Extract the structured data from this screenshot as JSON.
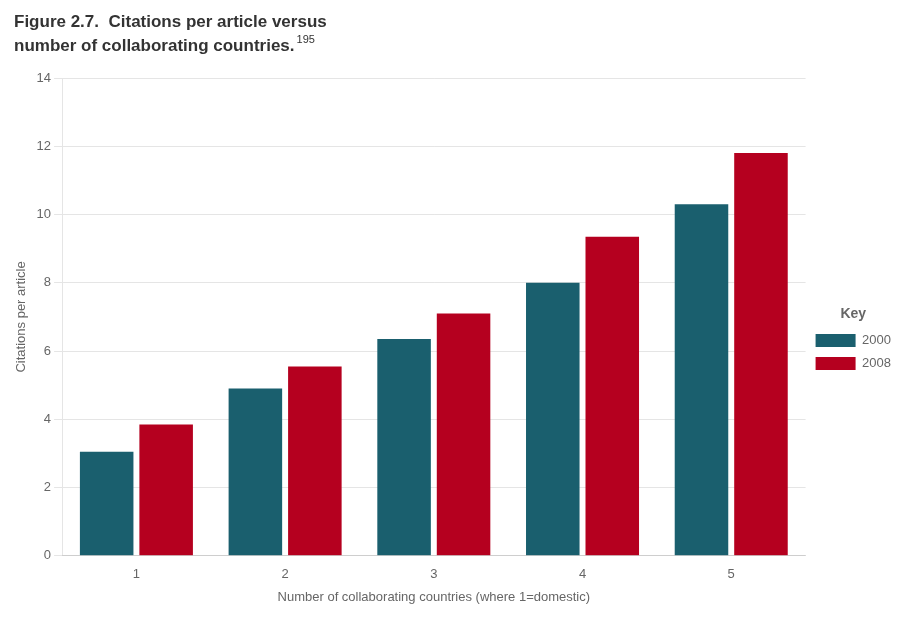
{
  "chart_data": {
    "type": "bar",
    "title": [
      "Figure 2.7.  Citations per article versus",
      "number of collaborating countries."
    ],
    "annotations": [
      {
        "text": "195"
      }
    ],
    "x_label": "Number of collaborating countries (where 1=domestic)",
    "y_label": "Citations per article",
    "categories": [
      "1",
      "2",
      "3",
      "4",
      "5"
    ],
    "series": [
      {
        "name": "2000",
        "color": "#1a5f6e",
        "values": [
          3.05,
          4.9,
          6.35,
          8.0,
          10.3
        ]
      },
      {
        "name": "2008",
        "color": "#b5001f",
        "values": [
          3.85,
          5.55,
          7.1,
          9.35,
          11.8
        ]
      }
    ],
    "ylim": [
      0,
      14
    ],
    "yticks": [
      0,
      2,
      4,
      6,
      8,
      10,
      12,
      14
    ],
    "grid": true,
    "legend": "right",
    "legend_title": "Key"
  }
}
